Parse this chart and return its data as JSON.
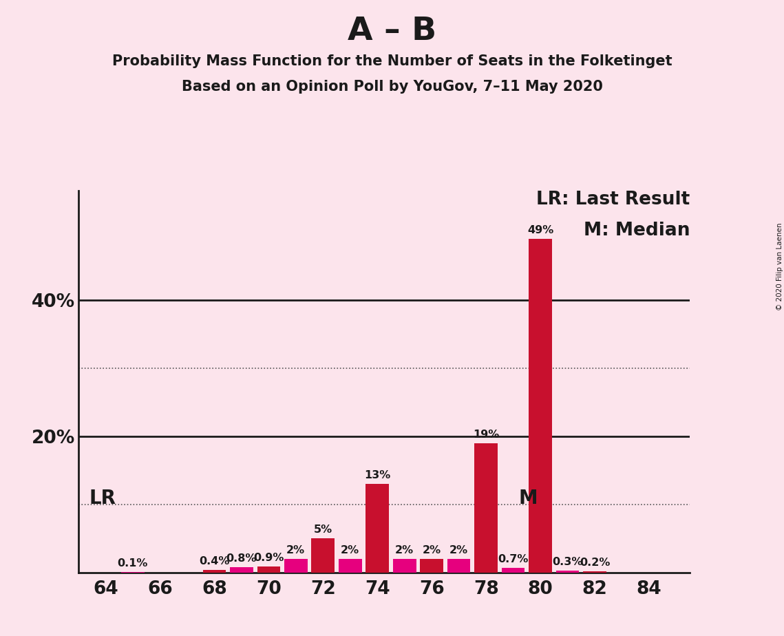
{
  "title_main": "A – B",
  "title_sub1": "Probability Mass Function for the Number of Seats in the Folketinget",
  "title_sub2": "Based on an Opinion Poll by YouGov, 7–11 May 2020",
  "copyright": "© 2020 Filip van Laenen",
  "background_color": "#fce4ec",
  "seats": [
    64,
    65,
    66,
    67,
    68,
    69,
    70,
    71,
    72,
    73,
    74,
    75,
    76,
    77,
    78,
    79,
    80,
    81,
    82,
    83,
    84
  ],
  "values": [
    0.0,
    0.1,
    0.0,
    0.0,
    0.4,
    0.8,
    0.9,
    2.0,
    5.0,
    2.0,
    13.0,
    2.0,
    2.0,
    2.0,
    19.0,
    0.7,
    49.0,
    0.3,
    0.2,
    0.0,
    0.0
  ],
  "bar_colors_even": "#c8102e",
  "bar_colors_odd": "#e6007e",
  "label_color": "#1a1a1a",
  "axis_color": "#1a1a1a",
  "dotted_grid_levels": [
    10,
    30
  ],
  "solid_grid_levels": [
    20,
    40
  ],
  "ylim_max": 56,
  "xlim_min": 63.0,
  "xlim_max": 85.5,
  "xticks": [
    64,
    66,
    68,
    70,
    72,
    74,
    76,
    78,
    80,
    82,
    84
  ],
  "lr_seat": 65,
  "median_seat": 79,
  "lr_label": "LR",
  "median_label": "M",
  "legend_lr": "LR: Last Result",
  "legend_m": "M: Median",
  "bar_label_fontsize": 11.5,
  "title_main_fontsize": 34,
  "title_sub_fontsize": 15,
  "axis_tick_fontsize": 19,
  "annotation_fontsize": 20,
  "legend_fontsize": 19
}
